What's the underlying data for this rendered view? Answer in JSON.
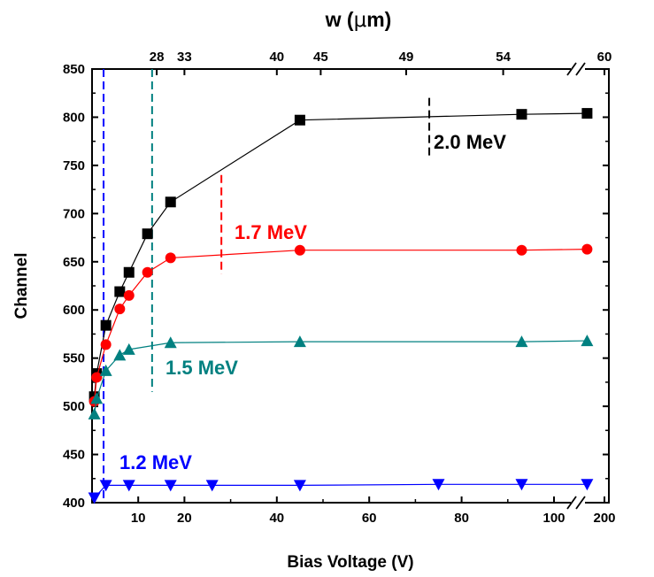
{
  "chart_data": {
    "type": "scatter",
    "xlabel": "Bias Voltage (V)",
    "ylabel": "Channel",
    "top_axis_label_prefix": "w (",
    "top_axis_label_mu": "μ",
    "top_axis_label_suffix": "m)",
    "ylim": [
      400,
      850
    ],
    "y_ticks": [
      400,
      450,
      500,
      550,
      600,
      650,
      700,
      750,
      800,
      850
    ],
    "x_axis_breaks": [
      107
    ],
    "x_segments": [
      {
        "from": 0,
        "to": 107,
        "ticks": [
          10,
          20,
          40,
          60,
          80,
          100
        ]
      },
      {
        "from": 190,
        "to": 200,
        "ticks": [
          200
        ]
      }
    ],
    "top_ticks": [
      {
        "label": "28",
        "at_bias": 14
      },
      {
        "label": "33",
        "at_bias": 20
      },
      {
        "label": "40",
        "at_bias": 40
      },
      {
        "label": "45",
        "at_bias": 49.5
      },
      {
        "label": "49",
        "at_bias": 68
      },
      {
        "label": "54",
        "at_bias": 89
      },
      {
        "label": "60",
        "at_bias": 200
      }
    ],
    "series": [
      {
        "name": "2.0 MeV",
        "color": "#000000",
        "marker": "square",
        "x": [
          0.5,
          1,
          3,
          6,
          8,
          12,
          17,
          45,
          93,
          193
        ],
        "y": [
          510,
          534,
          584,
          619,
          639,
          679,
          712,
          797,
          803,
          804
        ],
        "vline": 73
      },
      {
        "name": "1.7 MeV",
        "color": "#ff0000",
        "marker": "circle",
        "x": [
          0.5,
          1,
          3,
          6,
          8,
          12,
          17,
          45,
          93,
          193
        ],
        "y": [
          505,
          530,
          564,
          601,
          615,
          639,
          654,
          662,
          662,
          663
        ],
        "vline": 28
      },
      {
        "name": "1.5 MeV",
        "color": "#008080",
        "marker": "triangle-up",
        "x": [
          0.5,
          1,
          3,
          6,
          8,
          17,
          45,
          93,
          193
        ],
        "y": [
          492,
          508,
          537,
          553,
          559,
          566,
          567,
          567,
          568
        ],
        "vline": 13
      },
      {
        "name": "1.2 MeV",
        "color": "#0000ff",
        "marker": "triangle-down",
        "x": [
          0.5,
          3,
          8,
          17,
          26,
          45,
          75,
          93,
          193
        ],
        "y": [
          405,
          418,
          418,
          418,
          418,
          418,
          419,
          419,
          419
        ],
        "vline": 2.5
      }
    ]
  }
}
